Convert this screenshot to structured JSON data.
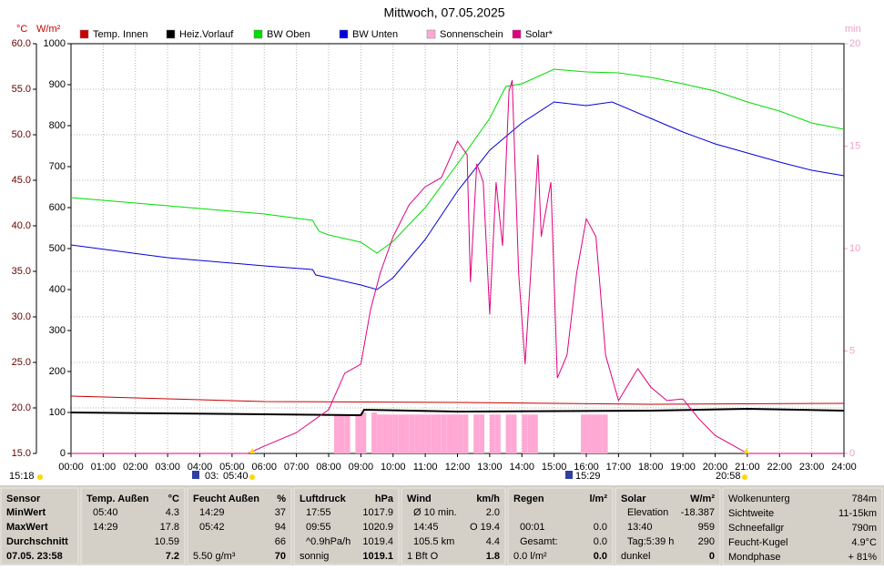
{
  "chart_data": {
    "type": "line",
    "title": "Mittwoch, 07.05.2025",
    "y_label": "°C",
    "y2_label": "W/m²",
    "y3_label": "min",
    "xlim": [
      0,
      24
    ],
    "xticks": [
      {
        "value": 0,
        "label": "00:00"
      },
      {
        "value": 1,
        "label": "01:00"
      },
      {
        "value": 2,
        "label": "02:00"
      },
      {
        "value": 3,
        "label": "03:00"
      },
      {
        "value": 4,
        "label": "04:00"
      },
      {
        "value": 5,
        "label": "05:00"
      },
      {
        "value": 6,
        "label": "06:00"
      },
      {
        "value": 7,
        "label": "07:00"
      },
      {
        "value": 8,
        "label": "08:00"
      },
      {
        "value": 9,
        "label": "09:00"
      },
      {
        "value": 10,
        "label": "10:00"
      },
      {
        "value": 11,
        "label": "11:00"
      },
      {
        "value": 12,
        "label": "12:00"
      },
      {
        "value": 13,
        "label": "13:00"
      },
      {
        "value": 14,
        "label": "14:00"
      },
      {
        "value": 15,
        "label": "15:00"
      },
      {
        "value": 16,
        "label": "16:00"
      },
      {
        "value": 17,
        "label": "17:00"
      },
      {
        "value": 18,
        "label": "18:00"
      },
      {
        "value": 19,
        "label": "19:00"
      },
      {
        "value": 20,
        "label": "20:00"
      },
      {
        "value": 21,
        "label": "21:00"
      },
      {
        "value": 22,
        "label": "22:00"
      },
      {
        "value": 23,
        "label": "23:00"
      },
      {
        "value": 24,
        "label": "24:00"
      }
    ],
    "ylim": [
      15,
      60
    ],
    "yticks": [
      {
        "value": 15,
        "label": "15.0"
      },
      {
        "value": 20,
        "label": "20.0"
      },
      {
        "value": 25,
        "label": "25.0"
      },
      {
        "value": 30,
        "label": "30.0"
      },
      {
        "value": 35,
        "label": "35.0"
      },
      {
        "value": 40,
        "label": "40.0"
      },
      {
        "value": 45,
        "label": "45.0"
      },
      {
        "value": 50,
        "label": "50.0"
      },
      {
        "value": 55,
        "label": "55.0"
      },
      {
        "value": 60,
        "label": "60.0"
      }
    ],
    "y2lim": [
      0,
      1000
    ],
    "y2ticks": [
      0,
      100,
      200,
      300,
      400,
      500,
      600,
      700,
      800,
      900,
      1000
    ],
    "y3lim": [
      0,
      20
    ],
    "y3ticks": [
      0,
      5,
      10,
      15,
      20
    ],
    "grid": true,
    "series": [
      {
        "name": "Temp. Innen",
        "color": "#c80000",
        "x": [
          0,
          6,
          12,
          18,
          24
        ],
        "values": [
          21.3,
          20.7,
          20.6,
          20.4,
          20.5
        ]
      },
      {
        "name": "Heiz.Vorlauf",
        "color": "#000000",
        "x": [
          0,
          9,
          9.1,
          12,
          18,
          21,
          24
        ],
        "values": [
          19.5,
          19.2,
          19.8,
          19.6,
          19.7,
          19.9,
          19.7
        ]
      },
      {
        "name": "BW Oben",
        "color": "#00dc00",
        "x": [
          0,
          3,
          6,
          7.5,
          7.7,
          8,
          9,
          9.5,
          10,
          11,
          12,
          13,
          13.5,
          14,
          15,
          16,
          17,
          18,
          19,
          20,
          21,
          22,
          23,
          24
        ],
        "values": [
          43.1,
          42.2,
          41.3,
          40.6,
          39.4,
          39.0,
          38.2,
          37.0,
          38.3,
          42.0,
          46.8,
          51.8,
          55.3,
          55.6,
          57.2,
          56.9,
          56.8,
          56.3,
          55.6,
          54.8,
          53.6,
          52.6,
          51.3,
          50.6
        ]
      },
      {
        "name": "BW Unten",
        "color": "#0000dc",
        "x": [
          0,
          3,
          6,
          7.5,
          7.6,
          8,
          9,
          9.5,
          10,
          11,
          12,
          13,
          14,
          15,
          16,
          16.8,
          18,
          19,
          20,
          21,
          22,
          23,
          24
        ],
        "values": [
          37.9,
          36.5,
          35.6,
          35.2,
          34.6,
          34.3,
          33.5,
          33.0,
          34.3,
          38.5,
          43.8,
          48.3,
          51.3,
          53.6,
          53.2,
          53.6,
          51.8,
          50.3,
          49.0,
          48.0,
          47.0,
          46.1,
          45.5
        ]
      },
      {
        "name": "Sonnenschein",
        "color": "#ffa8d4",
        "type": "bar",
        "axis": "y3",
        "x": [
          8.17,
          8.33,
          8.5,
          8.83,
          9.0,
          9.33,
          9.5,
          9.67,
          9.83,
          10.0,
          10.17,
          10.33,
          10.5,
          10.67,
          10.83,
          11.0,
          11.17,
          11.33,
          11.5,
          11.67,
          11.83,
          12.0,
          12.17,
          12.5,
          12.67,
          13.0,
          13.17,
          13.5,
          13.67,
          14.0,
          14.17,
          14.33,
          15.83,
          16.0,
          16.17,
          16.33,
          16.5
        ],
        "values": [
          1.9,
          1.9,
          1.9,
          1.9,
          2.0,
          2.0,
          1.9,
          1.9,
          1.9,
          1.9,
          1.9,
          1.9,
          1.9,
          1.9,
          1.9,
          1.9,
          1.9,
          1.9,
          1.9,
          1.9,
          1.9,
          1.9,
          1.9,
          1.9,
          1.9,
          1.9,
          1.9,
          1.9,
          1.9,
          1.9,
          1.9,
          1.9,
          1.9,
          1.9,
          1.9,
          1.9,
          1.9
        ]
      },
      {
        "name": "Solar*",
        "color": "#e0007f",
        "axis": "y2",
        "x": [
          0,
          5.5,
          6,
          7,
          8,
          8.5,
          9,
          9.3,
          9.6,
          10,
          10.5,
          11,
          11.5,
          12,
          12.3,
          12.4,
          12.6,
          12.8,
          13,
          13.2,
          13.4,
          13.6,
          13.7,
          13.9,
          14.1,
          14.5,
          14.6,
          14.9,
          15.1,
          15.4,
          15.7,
          16,
          16.3,
          16.6,
          17,
          17.6,
          18,
          18.5,
          19,
          19.5,
          20,
          20.5,
          21,
          24
        ],
        "values": [
          0,
          0,
          18,
          51,
          107,
          196,
          218,
          351,
          440,
          529,
          607,
          651,
          673,
          762,
          729,
          418,
          707,
          662,
          340,
          662,
          507,
          884,
          911,
          440,
          218,
          729,
          529,
          662,
          184,
          240,
          440,
          573,
          529,
          240,
          129,
          207,
          162,
          129,
          133,
          84,
          44,
          22,
          0,
          0
        ]
      }
    ],
    "annotations": [
      "15:18",
      "03:",
      "05:40",
      "15:29",
      "20:58"
    ]
  },
  "table": {
    "panels": [
      {
        "title": "Sensor",
        "rows": [
          {
            "label": "MinWert"
          },
          {
            "label": "MaxWert"
          },
          {
            "label": "Durchschnitt"
          },
          {
            "label": "07.05. 23:58"
          }
        ]
      },
      {
        "title": "Temp. Außen",
        "unit": "°C",
        "rows": [
          {
            "label": "05:40",
            "value": "4.3"
          },
          {
            "label": "14:29",
            "value": "17.8"
          },
          {
            "value": "10.59"
          },
          {
            "value": "7.2"
          }
        ]
      },
      {
        "title": "Feucht Außen",
        "unit": "%",
        "rows": [
          {
            "label": "14:29",
            "value": "37"
          },
          {
            "label": "05:42",
            "value": "94"
          },
          {
            "value": "66"
          },
          {
            "label": "5.50 g/m³",
            "value": "70"
          }
        ]
      },
      {
        "title": "Luftdruck",
        "unit": "hPa",
        "rows": [
          {
            "label": "17:55",
            "value": "1017.9"
          },
          {
            "label": "09:55",
            "value": "1020.9"
          },
          {
            "label": "^0.9hPa/h",
            "value": "1019.4"
          },
          {
            "label": "sonnig",
            "value": "1019.1"
          }
        ]
      },
      {
        "title": "Wind",
        "unit": "km/h",
        "rows": [
          {
            "label": "Ø 10 min.",
            "value": "2.0"
          },
          {
            "label": "14:45",
            "value": "O 19.4"
          },
          {
            "label": "105.5 km",
            "value": "4.4"
          },
          {
            "label": "1 Bft O",
            "value": "1.8"
          }
        ]
      },
      {
        "title": "Regen",
        "unit": "l/m²",
        "rows": [
          {},
          {
            "label": "00:01",
            "value": "0.0"
          },
          {
            "label": "Gesamt:",
            "value": "0.0"
          },
          {
            "label": "0.0 l/m²",
            "value": "0.0"
          }
        ]
      },
      {
        "title": "Solar",
        "unit": "W/m²",
        "rows": [
          {
            "label": "Elevation",
            "value": "-18.387"
          },
          {
            "label": "13:40",
            "value": "959"
          },
          {
            "label": "Tag:5:39 h",
            "value": "290"
          },
          {
            "label": "dunkel",
            "value": "0"
          }
        ]
      },
      {
        "rows": [
          {
            "label": "Wolkenunterg",
            "value": "784m"
          },
          {
            "label": "Sichtweite",
            "value": "11-15km"
          },
          {
            "label": "Schneefallgr",
            "value": "790m"
          },
          {
            "label": "Feucht-Kugel",
            "value": "4.9°C"
          },
          {
            "label": "Mondphase",
            "value": "+ 81%"
          }
        ]
      }
    ]
  }
}
